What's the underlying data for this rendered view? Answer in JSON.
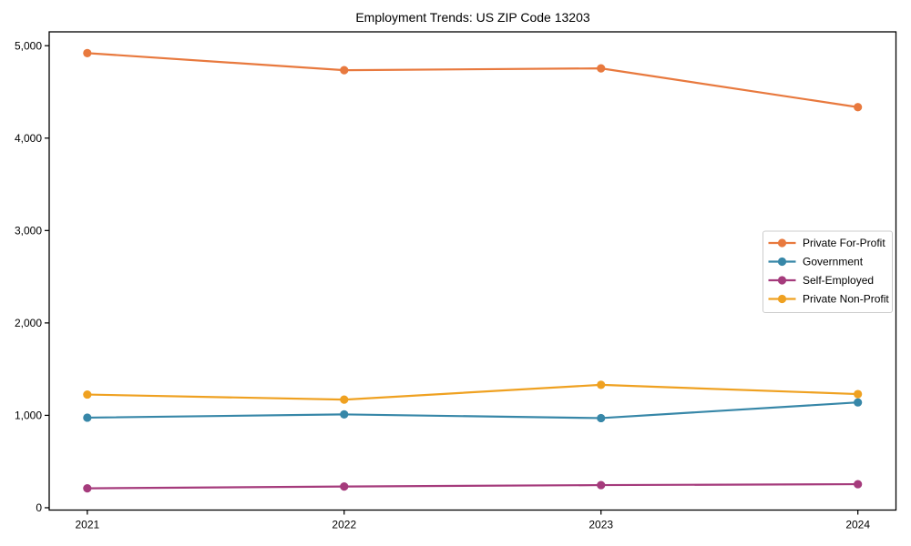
{
  "chart_data": {
    "type": "line",
    "title": "Employment Trends: US ZIP Code 13203",
    "categories": [
      "2021",
      "2022",
      "2023",
      "2024"
    ],
    "series": [
      {
        "name": "Private For-Profit",
        "color": "#e8793e",
        "values": [
          4920,
          4735,
          4755,
          4335
        ]
      },
      {
        "name": "Government",
        "color": "#3787a8",
        "values": [
          975,
          1010,
          970,
          1140
        ]
      },
      {
        "name": "Self-Employed",
        "color": "#a53b7c",
        "values": [
          210,
          230,
          245,
          255
        ]
      },
      {
        "name": "Private Non-Profit",
        "color": "#efa121",
        "values": [
          1225,
          1170,
          1330,
          1230
        ]
      }
    ],
    "xlabel": "",
    "ylabel": "",
    "ylim": [
      -25,
      5150
    ],
    "yticks": [
      0,
      1000,
      2000,
      3000,
      4000,
      5000
    ],
    "ytick_labels": [
      "0",
      "1,000",
      "2,000",
      "3,000",
      "4,000",
      "5,000"
    ],
    "grid": false,
    "legend": {
      "position": "center-right",
      "border_color": "#cccccc",
      "background": "#ffffff",
      "entries": [
        "Private For-Profit",
        "Government",
        "Self-Employed",
        "Private Non-Profit"
      ]
    },
    "marker_style": "circle",
    "line_style": "solid",
    "axis_color": "#000000",
    "background": "#ffffff"
  }
}
